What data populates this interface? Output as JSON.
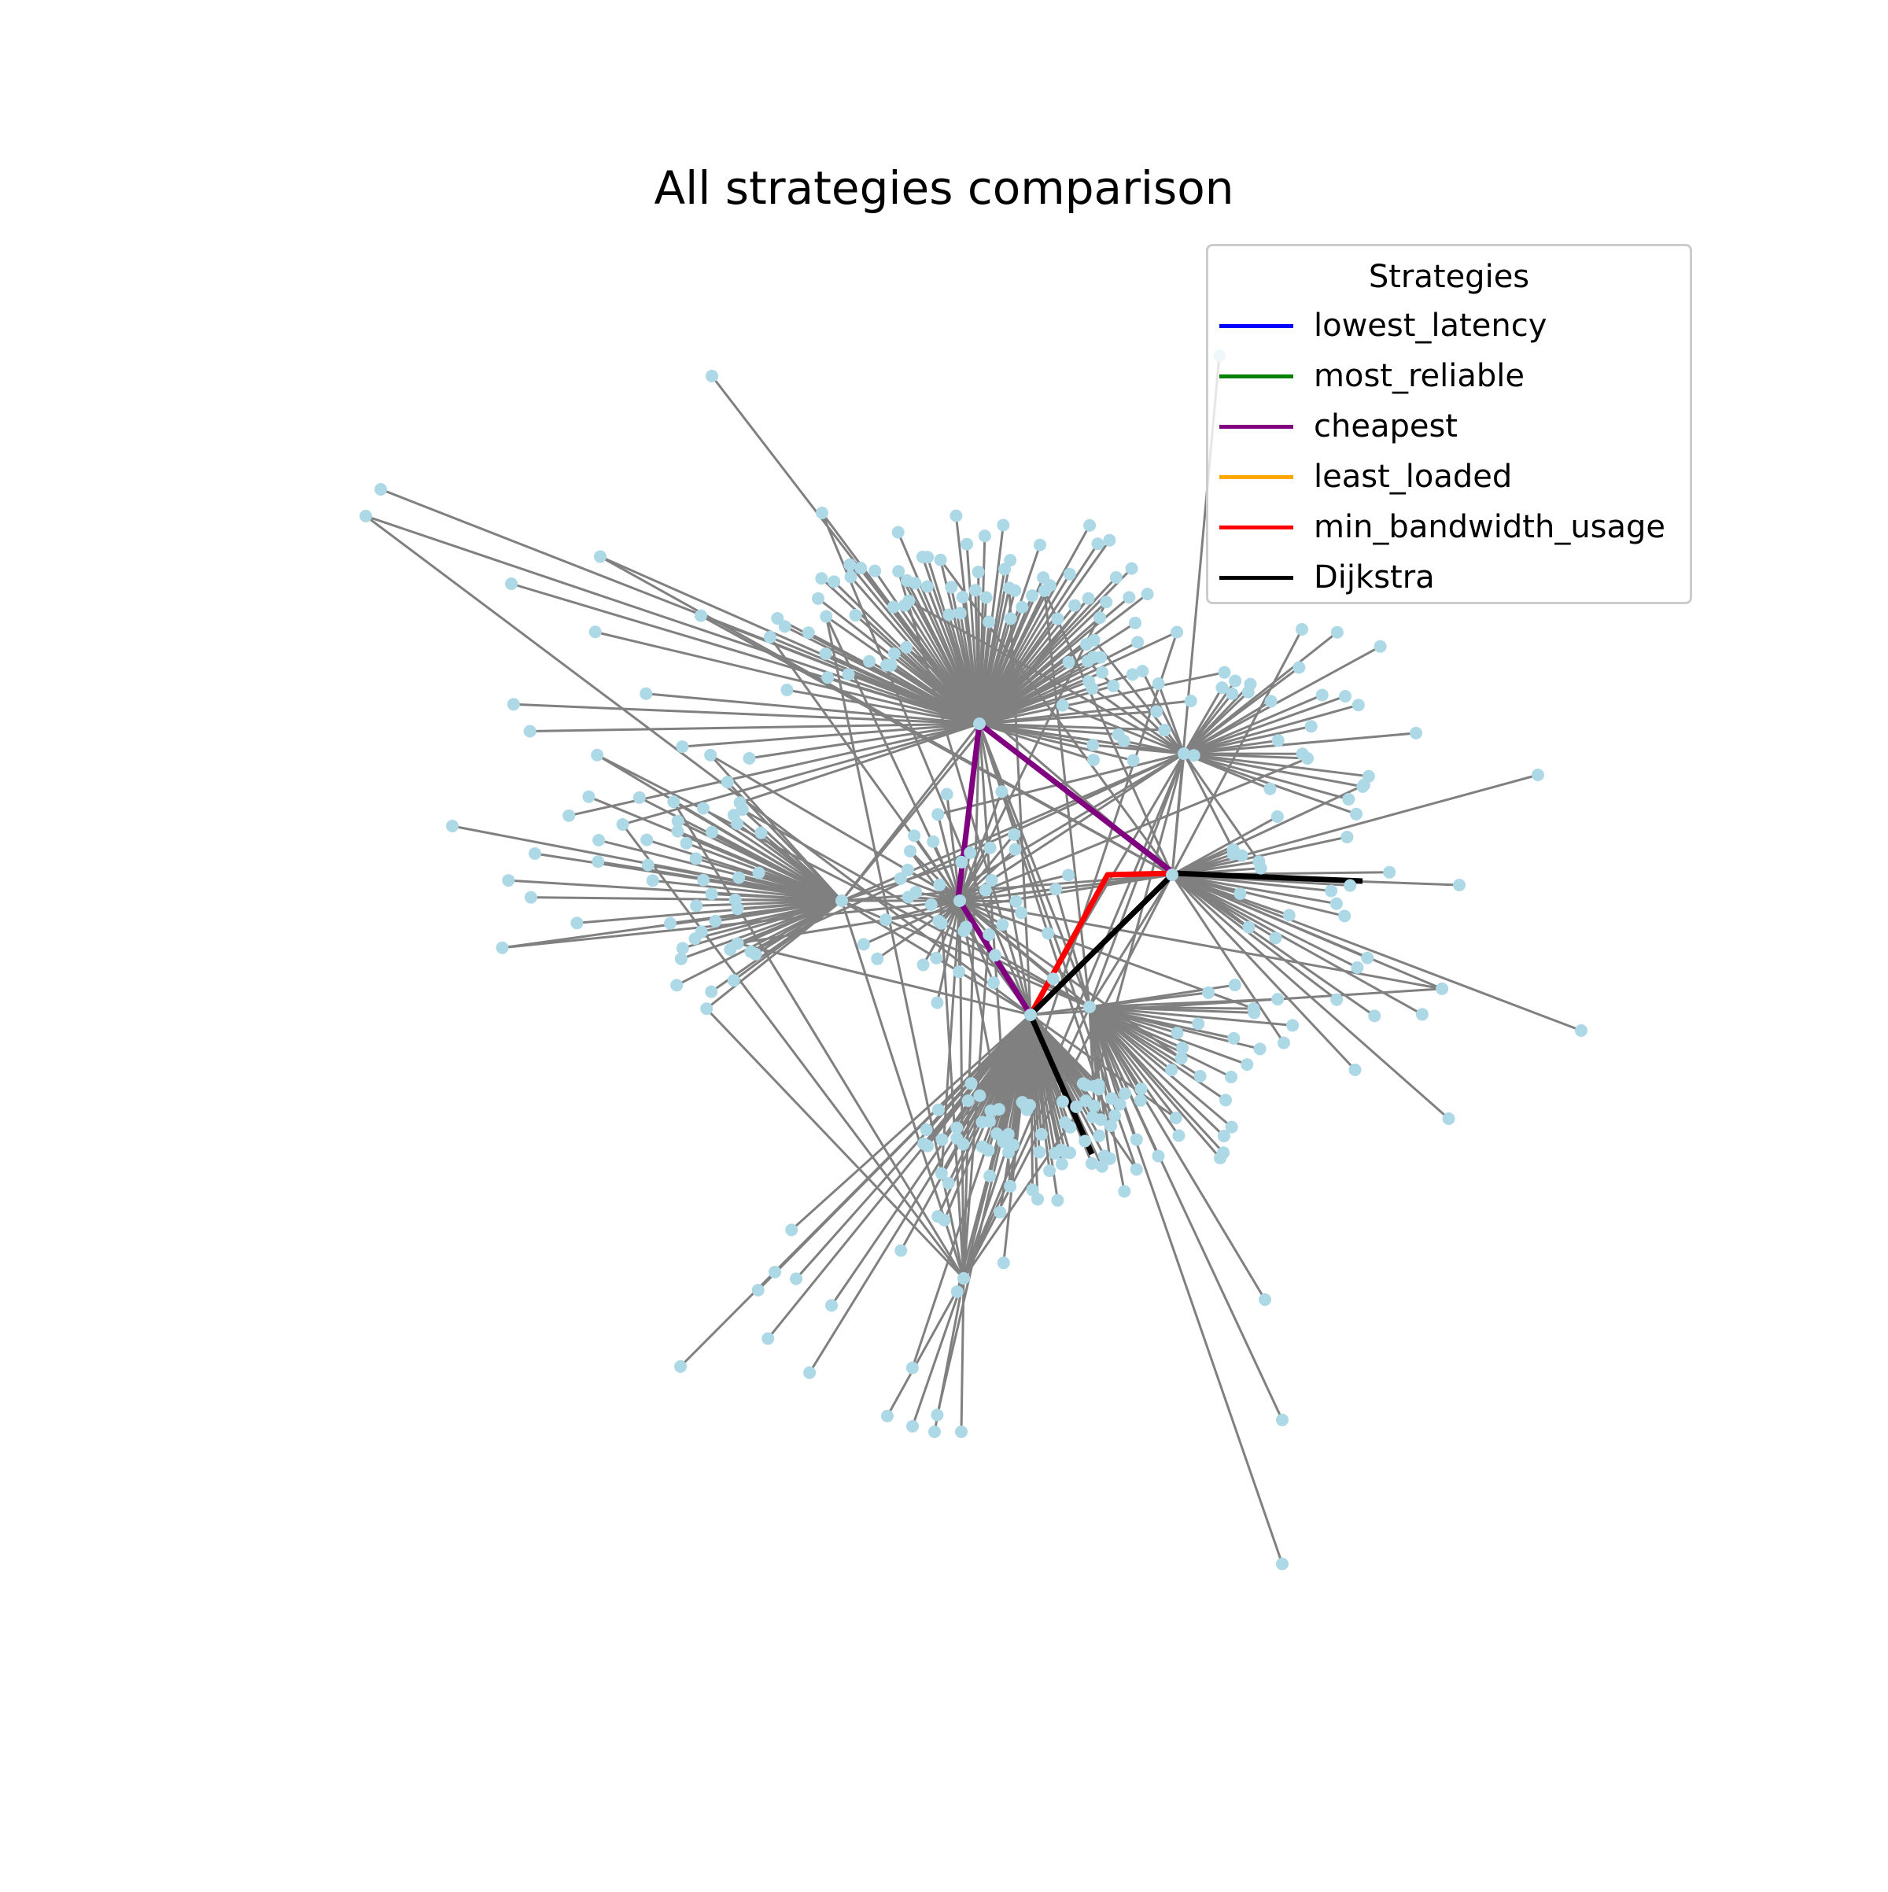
{
  "title": "All strategies comparison",
  "legend": {
    "title": "Strategies",
    "items": [
      {
        "label": "lowest_latency",
        "color": "#0000ff"
      },
      {
        "label": "most_reliable",
        "color": "#008000"
      },
      {
        "label": "cheapest",
        "color": "#800080"
      },
      {
        "label": "least_loaded",
        "color": "#ffa500"
      },
      {
        "label": "min_bandwidth_usage",
        "color": "#ff0000"
      },
      {
        "label": "Dijkstra",
        "color": "#000000"
      }
    ]
  },
  "colors": {
    "edge": "#808080",
    "node": "#add8e6",
    "background": "#ffffff"
  }
}
